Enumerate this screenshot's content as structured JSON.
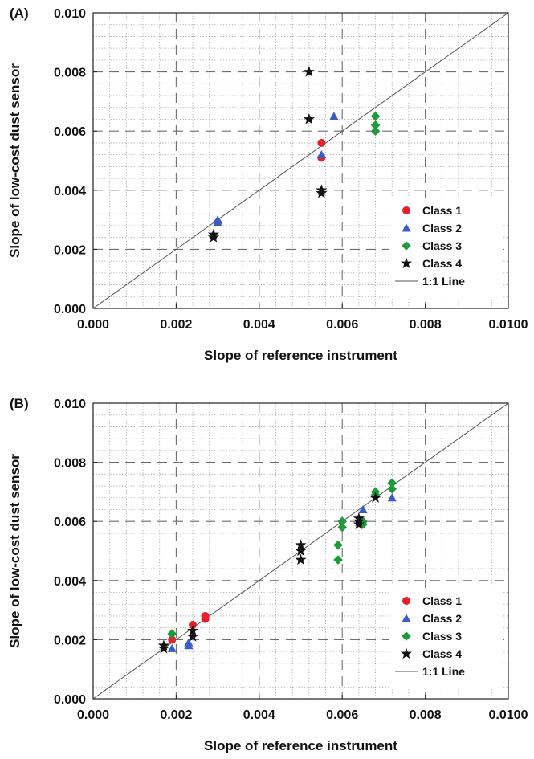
{
  "chart_data": [
    {
      "type": "scatter",
      "panel_label": "(A)",
      "xlabel": "Slope of reference instrument",
      "ylabel": "Slope of low-cost dust sensor",
      "xlim": [
        0,
        0.01
      ],
      "ylim": [
        0,
        0.01
      ],
      "x_ticks": [
        "0.000",
        "0.002",
        "0.004",
        "0.006",
        "0.008",
        "0.0100"
      ],
      "y_ticks": [
        "0.000",
        "0.002",
        "0.004",
        "0.006",
        "0.008",
        "0.010"
      ],
      "grid": true,
      "legend_position": "bottom-right",
      "reference_line": {
        "name": "1:1 Line",
        "color": "#555555"
      },
      "series": [
        {
          "name": "Class 1",
          "marker": "circle",
          "color": "#e8202a",
          "points": [
            [
              0.003,
              0.0029
            ],
            [
              0.0055,
              0.0056
            ],
            [
              0.0055,
              0.0051
            ]
          ]
        },
        {
          "name": "Class 2",
          "marker": "triangle",
          "color": "#3b5cc6",
          "points": [
            [
              0.003,
              0.003
            ],
            [
              0.003,
              0.0029
            ],
            [
              0.0055,
              0.0052
            ],
            [
              0.0058,
              0.0065
            ]
          ]
        },
        {
          "name": "Class 3",
          "marker": "diamond",
          "color": "#1e9a3a",
          "points": [
            [
              0.0068,
              0.0065
            ],
            [
              0.0068,
              0.0062
            ],
            [
              0.0068,
              0.006
            ]
          ]
        },
        {
          "name": "Class 4",
          "marker": "star",
          "color": "#111111",
          "points": [
            [
              0.0029,
              0.0025
            ],
            [
              0.0029,
              0.0024
            ],
            [
              0.0052,
              0.008
            ],
            [
              0.0052,
              0.0064
            ],
            [
              0.0055,
              0.004
            ],
            [
              0.0055,
              0.0039
            ]
          ]
        }
      ]
    },
    {
      "type": "scatter",
      "panel_label": "(B)",
      "xlabel": "Slope of reference instrument",
      "ylabel": "Slope of low-cost dust sensor",
      "xlim": [
        0,
        0.01
      ],
      "ylim": [
        0,
        0.01
      ],
      "x_ticks": [
        "0.000",
        "0.002",
        "0.004",
        "0.006",
        "0.008",
        "0.0100"
      ],
      "y_ticks": [
        "0.000",
        "0.002",
        "0.004",
        "0.006",
        "0.008",
        "0.010"
      ],
      "grid": true,
      "legend_position": "bottom-right",
      "reference_line": {
        "name": "1:1 Line",
        "color": "#555555"
      },
      "series": [
        {
          "name": "Class 1",
          "marker": "circle",
          "color": "#e8202a",
          "points": [
            [
              0.0019,
              0.002
            ],
            [
              0.0024,
              0.0025
            ],
            [
              0.0027,
              0.0028
            ],
            [
              0.0027,
              0.0027
            ]
          ]
        },
        {
          "name": "Class 2",
          "marker": "triangle",
          "color": "#3b5cc6",
          "points": [
            [
              0.0019,
              0.0017
            ],
            [
              0.0023,
              0.0019
            ],
            [
              0.0023,
              0.0018
            ],
            [
              0.0065,
              0.0064
            ],
            [
              0.0072,
              0.0068
            ]
          ]
        },
        {
          "name": "Class 3",
          "marker": "diamond",
          "color": "#1e9a3a",
          "points": [
            [
              0.0019,
              0.0022
            ],
            [
              0.0059,
              0.0052
            ],
            [
              0.0059,
              0.0047
            ],
            [
              0.006,
              0.006
            ],
            [
              0.006,
              0.0058
            ],
            [
              0.0065,
              0.006
            ],
            [
              0.0065,
              0.0059
            ],
            [
              0.0068,
              0.007
            ],
            [
              0.0068,
              0.0069
            ],
            [
              0.0072,
              0.0073
            ],
            [
              0.0072,
              0.0071
            ]
          ]
        },
        {
          "name": "Class 4",
          "marker": "star",
          "color": "#111111",
          "points": [
            [
              0.0017,
              0.0018
            ],
            [
              0.0017,
              0.0017
            ],
            [
              0.0024,
              0.0023
            ],
            [
              0.0024,
              0.0021
            ],
            [
              0.005,
              0.0052
            ],
            [
              0.005,
              0.005
            ],
            [
              0.005,
              0.0047
            ],
            [
              0.0064,
              0.0061
            ],
            [
              0.0064,
              0.006
            ],
            [
              0.0064,
              0.0059
            ],
            [
              0.0068,
              0.0068
            ]
          ]
        }
      ]
    }
  ]
}
